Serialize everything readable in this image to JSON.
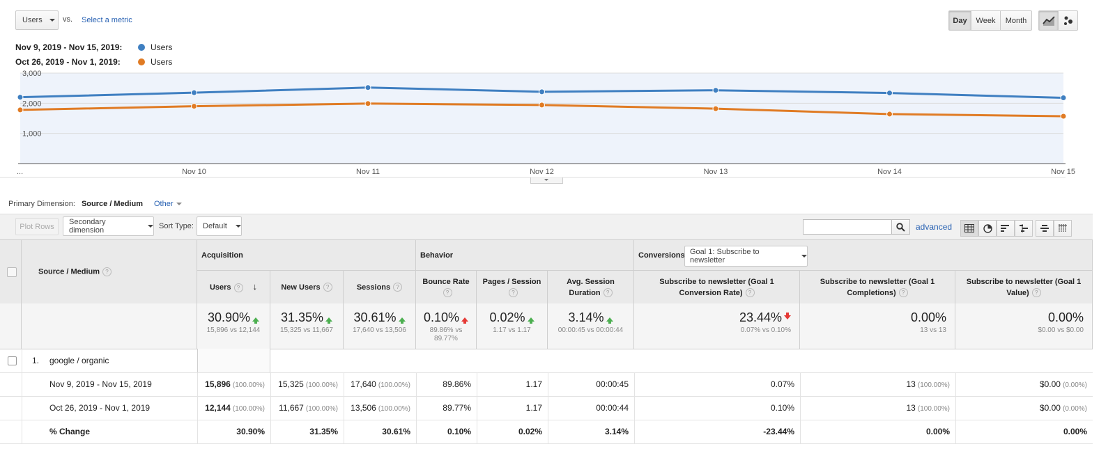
{
  "metric_bar": {
    "metric": "Users",
    "vs": "vs.",
    "select_metric": "Select a metric",
    "periods": [
      "Day",
      "Week",
      "Month"
    ],
    "active_period": "Day"
  },
  "legend": [
    {
      "range": "Nov 9, 2019 - Nov 15, 2019:",
      "series": "Users",
      "color": "#3f7fc1"
    },
    {
      "range": "Oct 26, 2019 - Nov 1, 2019:",
      "series": "Users",
      "color": "#e07b24"
    }
  ],
  "chart_data": {
    "type": "line",
    "categories": [
      "...",
      "Nov 10",
      "Nov 11",
      "Nov 12",
      "Nov 13",
      "Nov 14",
      "Nov 15"
    ],
    "yticks": [
      "3,000",
      "2,000",
      "1,000"
    ],
    "ylim": [
      0,
      3000
    ],
    "grid": true,
    "series": [
      {
        "name": "Nov 9, 2019 - Nov 15, 2019: Users",
        "color": "#3f7fc1",
        "values": [
          2200,
          2350,
          2520,
          2380,
          2430,
          2340,
          2180
        ]
      },
      {
        "name": "Oct 26, 2019 - Nov 1, 2019: Users",
        "color": "#e07b24",
        "values": [
          1780,
          1900,
          1990,
          1940,
          1820,
          1640,
          1570
        ]
      }
    ]
  },
  "dimension": {
    "label": "Primary Dimension:",
    "value": "Source / Medium",
    "other": "Other"
  },
  "toolbar": {
    "plot_rows": "Plot Rows",
    "secondary_dimension": "Secondary dimension",
    "sort_type_label": "Sort Type:",
    "sort_type_value": "Default",
    "search_placeholder": "",
    "advanced": "advanced"
  },
  "table": {
    "dim_header": "Source / Medium",
    "groups": {
      "acquisition": "Acquisition",
      "behavior": "Behavior",
      "conversions": "Conversions",
      "goal_select": "Goal 1: Subscribe to newsletter"
    },
    "columns": [
      "Users",
      "New Users",
      "Sessions",
      "Bounce Rate",
      "Pages / Session",
      "Avg. Session Duration",
      "Subscribe to newsletter (Goal 1 Conversion Rate)",
      "Subscribe to newsletter (Goal 1 Completions)",
      "Subscribe to newsletter (Goal 1 Value)"
    ],
    "summary": [
      {
        "value": "30.90%",
        "trend": "up-good",
        "detail": "15,896 vs 12,144"
      },
      {
        "value": "31.35%",
        "trend": "up-good",
        "detail": "15,325 vs 11,667"
      },
      {
        "value": "30.61%",
        "trend": "up-good",
        "detail": "17,640 vs 13,506"
      },
      {
        "value": "0.10%",
        "trend": "up-bad",
        "detail": "89.86% vs 89.77%"
      },
      {
        "value": "0.02%",
        "trend": "up-good",
        "detail": "1.17 vs 1.17"
      },
      {
        "value": "3.14%",
        "trend": "up-good",
        "detail": "00:00:45 vs 00:00:44"
      },
      {
        "value": "23.44%",
        "trend": "down-bad",
        "detail": "0.07% vs 0.10%"
      },
      {
        "value": "0.00%",
        "trend": "none",
        "detail": "13 vs 13"
      },
      {
        "value": "0.00%",
        "trend": "none",
        "detail": "$0.00 vs $0.00"
      }
    ],
    "row": {
      "index": "1.",
      "label": "google / organic"
    },
    "subrows": [
      {
        "label": "Nov 9, 2019 - Nov 15, 2019",
        "cells": [
          {
            "v": "15,896",
            "p": "(100.00%)",
            "bold": true
          },
          {
            "v": "15,325",
            "p": "(100.00%)"
          },
          {
            "v": "17,640",
            "p": "(100.00%)"
          },
          {
            "v": "89.86%",
            "p": ""
          },
          {
            "v": "1.17",
            "p": ""
          },
          {
            "v": "00:00:45",
            "p": ""
          },
          {
            "v": "0.07%",
            "p": ""
          },
          {
            "v": "13",
            "p": "(100.00%)"
          },
          {
            "v": "$0.00",
            "p": "(0.00%)"
          }
        ]
      },
      {
        "label": "Oct 26, 2019 - Nov 1, 2019",
        "cells": [
          {
            "v": "12,144",
            "p": "(100.00%)",
            "bold": true
          },
          {
            "v": "11,667",
            "p": "(100.00%)"
          },
          {
            "v": "13,506",
            "p": "(100.00%)"
          },
          {
            "v": "89.77%",
            "p": ""
          },
          {
            "v": "1.17",
            "p": ""
          },
          {
            "v": "00:00:44",
            "p": ""
          },
          {
            "v": "0.10%",
            "p": ""
          },
          {
            "v": "13",
            "p": "(100.00%)"
          },
          {
            "v": "$0.00",
            "p": "(0.00%)"
          }
        ]
      }
    ],
    "change_row": {
      "label": "% Change",
      "cells": [
        "30.90%",
        "31.35%",
        "30.61%",
        "0.10%",
        "0.02%",
        "3.14%",
        "-23.44%",
        "0.00%",
        "0.00%"
      ]
    }
  }
}
